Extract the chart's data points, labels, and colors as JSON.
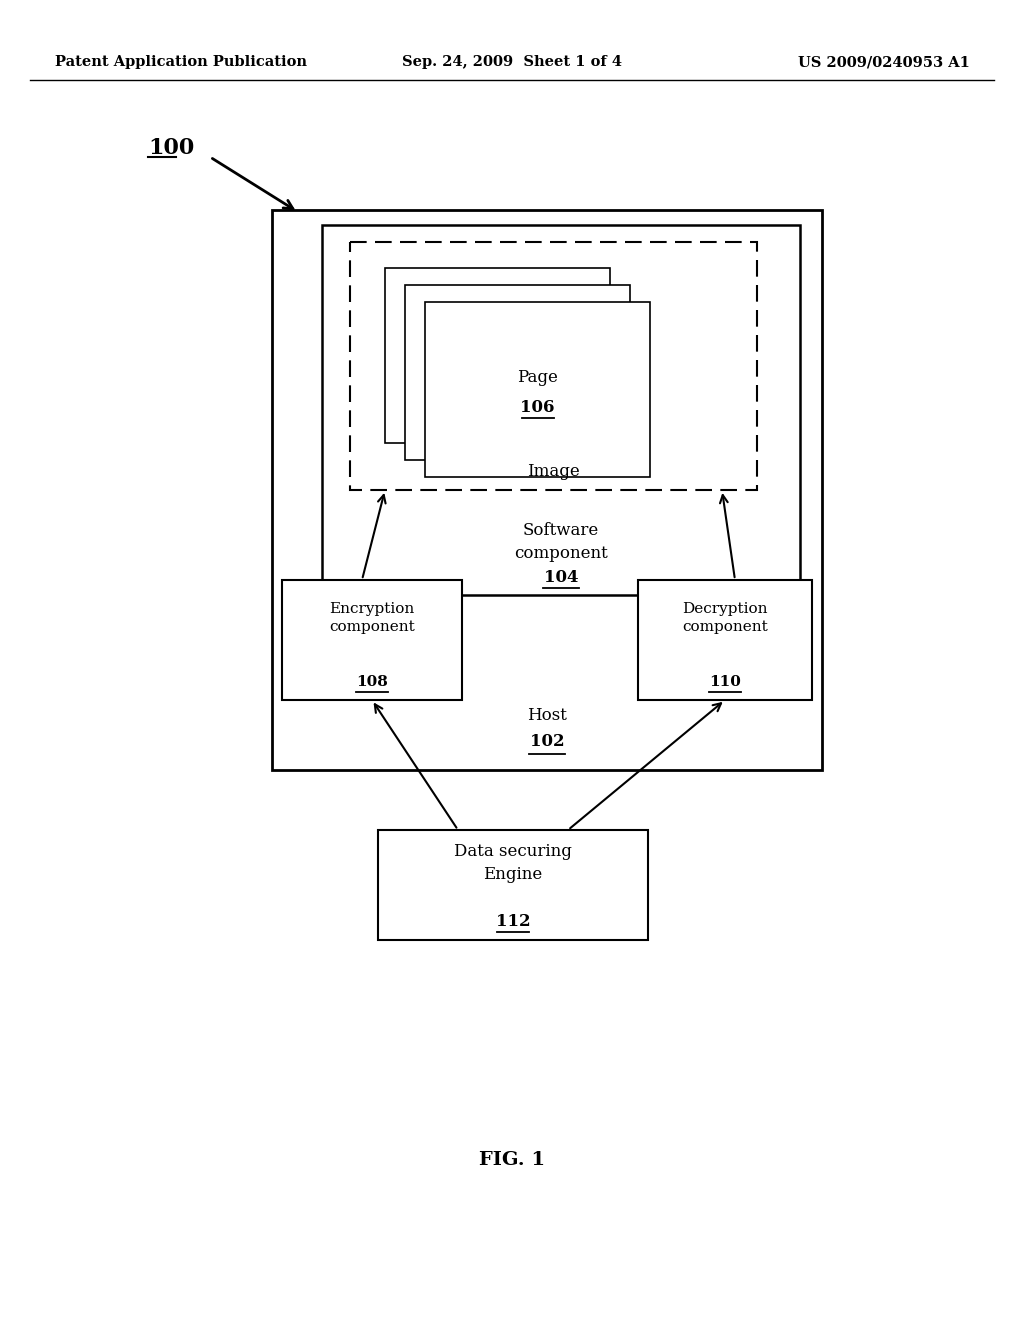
{
  "bg_color": "#ffffff",
  "header_left": "Patent Application Publication",
  "header_center": "Sep. 24, 2009  Sheet 1 of 4",
  "header_right": "US 2009/0240953 A1",
  "fig_label": "FIG. 1",
  "label_100": "100",
  "label_102": "102",
  "label_104": "104",
  "label_106": "106",
  "label_108": "108",
  "label_110": "110",
  "label_112": "112",
  "host_text": "Host",
  "software_text": "Software\ncomponent",
  "image_text": "Image",
  "page_text": "Page",
  "encryption_text": "Encryption\ncomponent",
  "decryption_text": "Decryption\ncomponent",
  "data_securing_text": "Data securing\nEngine",
  "font_size_header": 10.5,
  "font_size_node": 12
}
